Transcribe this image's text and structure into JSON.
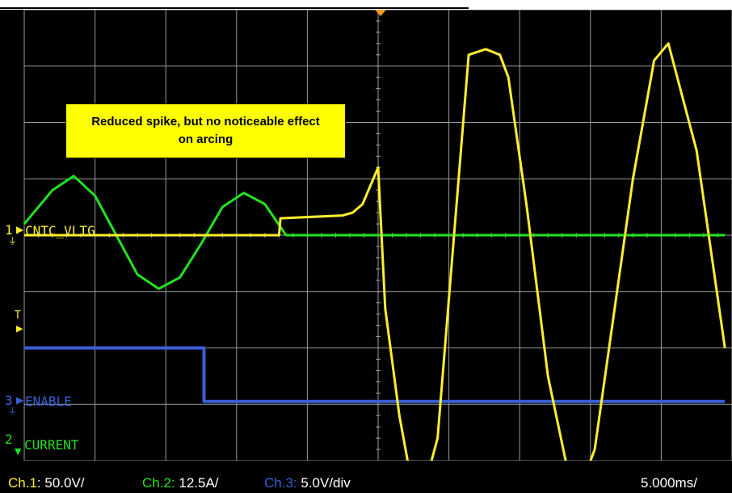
{
  "annotation": {
    "text": "Reduced spike, but no noticeable effect on arcing"
  },
  "channel_labels": {
    "ch1_marker": "1",
    "ch1_name": "CNTC_VLTG",
    "ch3_marker": "3",
    "ch3_name": "ENABLE",
    "ch2_marker": "2",
    "ch2_name": "CURRENT",
    "trigger_marker": "T"
  },
  "footer": {
    "ch1_name": "Ch.1",
    "ch1_scale": ": 50.0V/",
    "ch2_name": "Ch.2:",
    "ch2_scale": " 12.5A/",
    "ch3_name": "Ch.3:",
    "ch3_scale": " 5.0V/div",
    "timebase": "5.000ms/"
  },
  "colors": {
    "ch1": "#ffef2e",
    "ch2": "#22e31e",
    "ch3": "#3a5fd6",
    "grid": "#9a9a9a",
    "trigger": "#ff9a1a",
    "background": "#000000"
  },
  "chart_data": {
    "type": "line",
    "time_per_div_ms": 5.0,
    "divisions": {
      "x": 10,
      "y": 8
    },
    "grid": true,
    "trigger_time_ms": 0,
    "series": [
      {
        "name": "CNTC_VLTG",
        "channel": 1,
        "scale": "50.0V/div",
        "x_ms": [
          -25,
          -13,
          -13,
          -12.8,
          -7,
          -6.9,
          -2.5,
          -1.8,
          -1.1,
          0,
          0.5,
          1.5,
          2.3,
          3.4,
          4.2,
          6.4,
          7.6,
          8.6,
          9.2,
          10.5,
          12.0,
          13.5,
          14.5,
          15.3,
          16.6,
          18.0,
          19.5,
          20.5,
          22.5,
          24.5
        ],
        "y_div": [
          0,
          0,
          0,
          0.0,
          0,
          0.3,
          0.35,
          0.4,
          0.55,
          1.2,
          -1.3,
          -3.2,
          -4.3,
          -4.35,
          -3.6,
          3.2,
          3.3,
          3.2,
          2.8,
          0.5,
          -2.5,
          -4.3,
          -4.35,
          -3.8,
          -1.5,
          1.0,
          3.1,
          3.4,
          1.5,
          -2.0
        ]
      },
      {
        "name": "CURRENT",
        "channel": 2,
        "scale": "12.5A/div",
        "x_ms": [
          -25,
          -23,
          -21.5,
          -20,
          -18.5,
          -17,
          -15.5,
          -14,
          -12.5,
          -11,
          -9.5,
          -8,
          -6.5,
          -5,
          -3.5,
          -1.5,
          0,
          24.5
        ],
        "y_div": [
          0.2,
          0.8,
          1.05,
          0.7,
          0.0,
          -0.7,
          -0.95,
          -0.75,
          -0.15,
          0.5,
          0.75,
          0.55,
          0.0,
          0.0,
          0.0,
          0,
          0,
          0
        ]
      },
      {
        "name": "ENABLE",
        "channel": 3,
        "scale": "5.0V/div",
        "x_ms": [
          -25,
          -12.3,
          -12.3,
          24.5
        ],
        "y_div": [
          -2.0,
          -2.0,
          -2.95,
          -2.95
        ]
      }
    ]
  }
}
